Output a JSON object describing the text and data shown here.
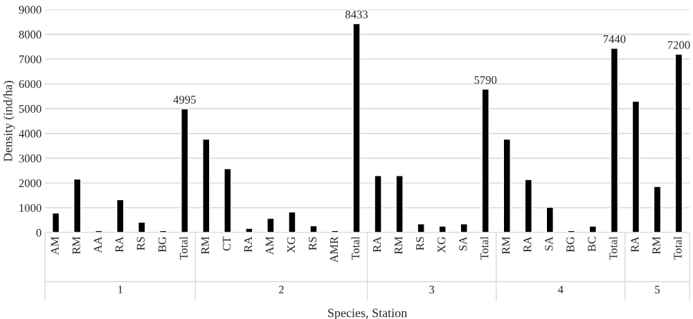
{
  "chart_data": {
    "type": "bar",
    "xlabel": "Species, Station",
    "ylabel": "Density (ind/ha)",
    "categories": [
      "AM",
      "RM",
      "AA",
      "RA",
      "RS",
      "BG",
      "Total",
      "RM",
      "CT",
      "RA",
      "AM",
      "XG",
      "RS",
      "AMR",
      "Total",
      "RA",
      "RM",
      "RS",
      "XG",
      "SA",
      "Total",
      "RM",
      "RA",
      "SA",
      "BG",
      "BC",
      "Total",
      "RA",
      "RM",
      "Total"
    ],
    "values": [
      790,
      2160,
      80,
      1330,
      420,
      80,
      4995,
      3770,
      2580,
      170,
      570,
      830,
      270,
      80,
      8433,
      2300,
      2300,
      350,
      260,
      350,
      5790,
      3770,
      2140,
      1020,
      80,
      260,
      7440,
      5300,
      1860,
      7200
    ],
    "value_labels": [
      null,
      null,
      null,
      null,
      null,
      null,
      "4995",
      null,
      null,
      null,
      null,
      null,
      null,
      null,
      "8433",
      null,
      null,
      null,
      null,
      null,
      "5790",
      null,
      null,
      null,
      null,
      null,
      "7440",
      null,
      null,
      "7200"
    ],
    "color": "#000000",
    "annotations": [
      "1",
      "2",
      "3",
      "4",
      "5"
    ],
    "ylim": [
      0,
      9000
    ],
    "yticks": [
      0,
      1000,
      2000,
      3000,
      4000,
      5000,
      6000,
      7000,
      8000,
      9000
    ],
    "grid": "y"
  }
}
